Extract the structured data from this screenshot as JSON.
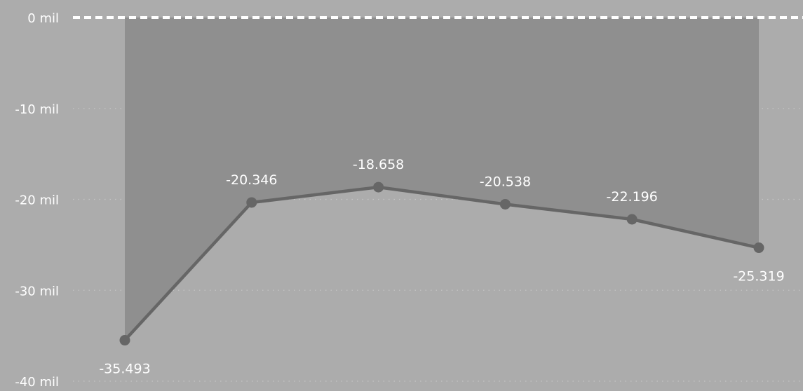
{
  "chart_data": {
    "type": "area",
    "title": "",
    "xlabel": "",
    "ylabel": "",
    "ylim": [
      -40000,
      0
    ],
    "y_ticks": [
      {
        "value": 0,
        "label": "0 mil"
      },
      {
        "value": -10000,
        "label": "-10 mil"
      },
      {
        "value": -20000,
        "label": "-20 mil"
      },
      {
        "value": -30000,
        "label": "-30 mil"
      },
      {
        "value": -40000,
        "label": "-40 mil"
      }
    ],
    "grid": true,
    "reference_line": {
      "value": 0,
      "style": "dashed",
      "color": "#ffffff"
    },
    "series": [
      {
        "values": [
          -35493,
          -20346,
          -18658,
          -20538,
          -22196,
          -25319
        ],
        "labels": [
          "-35.493",
          "-20.346",
          "-18.658",
          "-20.538",
          "-22.196",
          "-25.319"
        ],
        "label_positions": [
          "below",
          "above",
          "above",
          "above",
          "above",
          "below"
        ]
      }
    ],
    "colors": {
      "background": "#acacac",
      "area_fill": "#8f8f8f",
      "line": "#666666",
      "marker": "#666666",
      "gridline": "#c4c4c4",
      "text": "#ffffff"
    }
  }
}
